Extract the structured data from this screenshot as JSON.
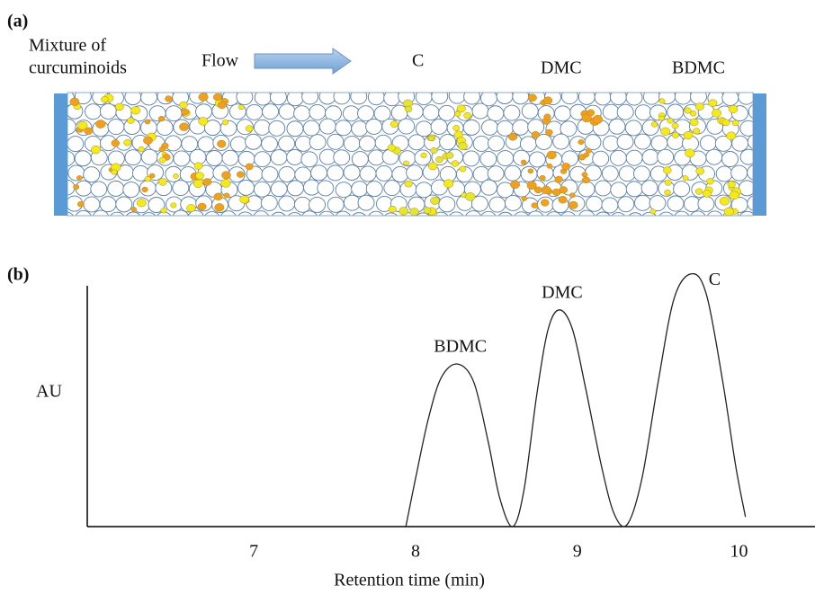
{
  "panel_a": {
    "label": "(a)",
    "feed_line1": "Mixture of",
    "feed_line2": "curcuminoids",
    "flow": "Flow",
    "band_labels": [
      "C",
      "DMC",
      "BDMC"
    ]
  },
  "chart_data": {
    "type": "line",
    "panel_label": "(b)",
    "y_label": "AU",
    "x_label": "Retention time (min)",
    "x": [
      7.94,
      8.0,
      8.08,
      8.16,
      8.26,
      8.36,
      8.45,
      8.52,
      8.6,
      8.67,
      8.75,
      8.82,
      8.89,
      8.97,
      9.05,
      9.15,
      9.23,
      9.31,
      9.4,
      9.5,
      9.6,
      9.71,
      9.8,
      9.9,
      9.98,
      10.04
    ],
    "values": [
      0,
      0.2,
      0.45,
      0.62,
      0.675,
      0.6,
      0.35,
      0.12,
      0.0,
      0.15,
      0.55,
      0.82,
      0.9,
      0.82,
      0.58,
      0.25,
      0.05,
      0.01,
      0.2,
      0.6,
      0.95,
      1.05,
      0.96,
      0.6,
      0.25,
      0.04
    ],
    "color": "#222222",
    "xlim": [
      5.97,
      10.47
    ],
    "xticks": [
      7,
      8,
      9,
      10
    ],
    "ylim": [
      0,
      1
    ],
    "annotations": [
      {
        "text": "BDMC",
        "x": 8.26,
        "y": 0.675
      },
      {
        "text": "DMC",
        "x": 8.89,
        "y": 0.9
      },
      {
        "text": "C",
        "x": 9.71,
        "y": 1.05
      }
    ]
  }
}
